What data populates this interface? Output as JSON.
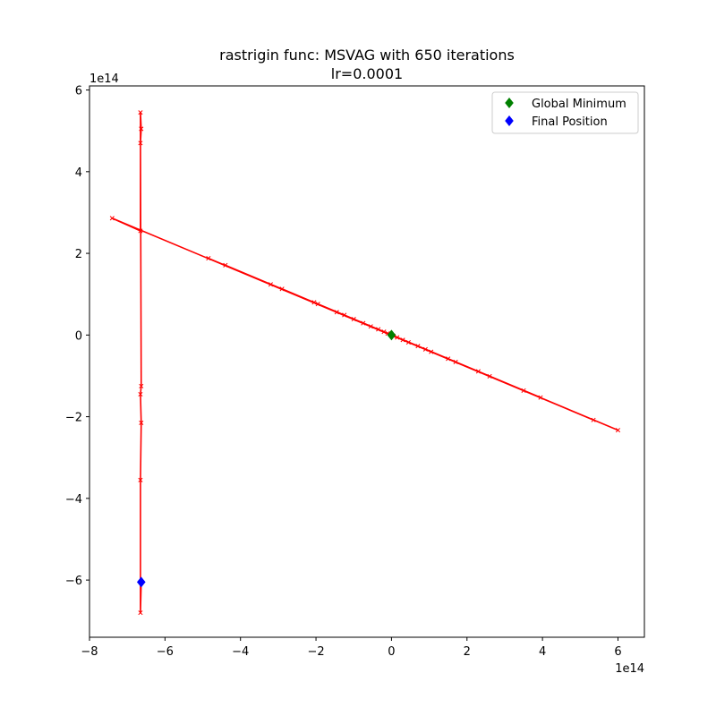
{
  "chart_data": {
    "type": "line",
    "title": "rastrigin func: MSVAG with 650 iterations",
    "subtitle": "lr=0.0001",
    "xlabel": "",
    "ylabel": "",
    "x_offset_label": "1e14",
    "y_offset_label": "1e14",
    "xlim": [
      -8.0,
      6.7
    ],
    "ylim": [
      -7.4,
      6.1
    ],
    "x_ticks": [
      -8,
      -6,
      -4,
      -2,
      0,
      2,
      4,
      6
    ],
    "y_ticks": [
      -6,
      -4,
      -2,
      0,
      2,
      4,
      6
    ],
    "x_tick_labels": [
      "−8",
      "−6",
      "−4",
      "−2",
      "0",
      "2",
      "4",
      "6"
    ],
    "y_tick_labels": [
      "−6",
      "−4",
      "−2",
      "0",
      "2",
      "4",
      "6"
    ],
    "grid": false,
    "legend_position": "top-right",
    "series": [
      {
        "role": "trajectory",
        "color": "#ff0000",
        "marker": "x",
        "points": [
          [
            0.0,
            0.0
          ],
          [
            0.05,
            -0.02
          ],
          [
            -0.1,
            0.04
          ],
          [
            0.15,
            -0.06
          ],
          [
            -0.2,
            0.08
          ],
          [
            0.3,
            -0.12
          ],
          [
            -0.35,
            0.14
          ],
          [
            0.45,
            -0.18
          ],
          [
            -0.55,
            0.21
          ],
          [
            0.7,
            -0.27
          ],
          [
            -0.75,
            0.29
          ],
          [
            0.9,
            -0.35
          ],
          [
            -1.0,
            0.39
          ],
          [
            1.05,
            -0.41
          ],
          [
            -1.25,
            0.49
          ],
          [
            1.5,
            -0.58
          ],
          [
            -1.45,
            0.56
          ],
          [
            1.7,
            -0.66
          ],
          [
            -1.95,
            0.76
          ],
          [
            2.3,
            -0.89
          ],
          [
            -2.05,
            0.8
          ],
          [
            2.6,
            -1.01
          ],
          [
            -2.9,
            1.13
          ],
          [
            3.5,
            -1.36
          ],
          [
            -3.2,
            1.24
          ],
          [
            3.95,
            -1.53
          ],
          [
            -4.4,
            1.71
          ],
          [
            5.35,
            -2.08
          ],
          [
            -4.85,
            1.88
          ],
          [
            6.0,
            -2.33
          ],
          [
            -7.4,
            2.86
          ],
          [
            -6.65,
            2.55
          ],
          [
            -6.65,
            5.45
          ],
          [
            -6.63,
            5.05
          ],
          [
            -6.65,
            4.7
          ],
          [
            -6.63,
            -1.25
          ],
          [
            -6.65,
            -1.45
          ],
          [
            -6.63,
            -2.15
          ],
          [
            -6.65,
            -3.55
          ],
          [
            -6.65,
            -6.8
          ],
          [
            -6.63,
            -6.05
          ]
        ]
      }
    ],
    "markers": [
      {
        "name": "Global Minimum",
        "x": 0.0,
        "y": 0.0,
        "color": "#008000",
        "shape": "diamond"
      },
      {
        "name": "Final Position",
        "x": -6.63,
        "y": -6.05,
        "color": "#0000ff",
        "shape": "diamond"
      }
    ]
  }
}
